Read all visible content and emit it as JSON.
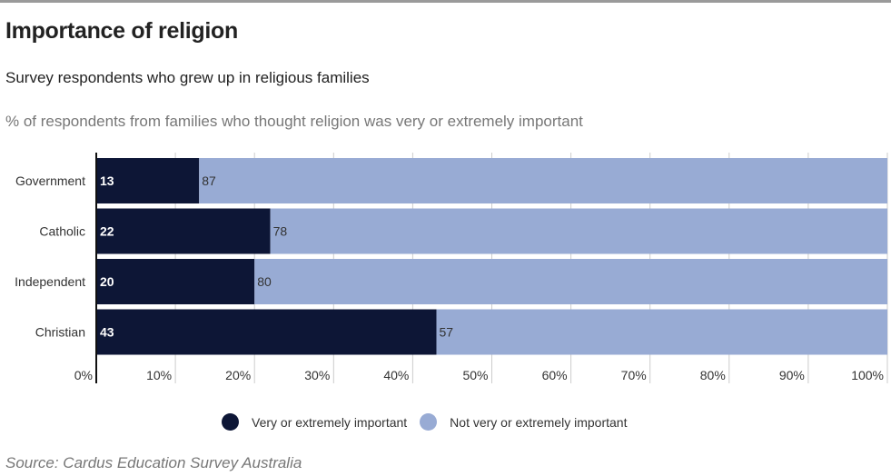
{
  "header": {
    "title": "Importance of religion",
    "subtitle": "Survey respondents who grew up in religious families",
    "measure": "% of respondents from families who thought religion was very or extremely important"
  },
  "legend": {
    "items": [
      {
        "label": "Very or extremely important",
        "color": "#0d1636"
      },
      {
        "label": "Not very or extremely important",
        "color": "#98abd4"
      }
    ]
  },
  "source": "Source: Cardus Education Survey Australia",
  "chart_data": {
    "type": "bar",
    "orientation": "horizontal",
    "stacked": true,
    "categories": [
      "Government",
      "Catholic",
      "Independent",
      "Christian"
    ],
    "series": [
      {
        "name": "Very or extremely important",
        "values": [
          13,
          22,
          20,
          43
        ],
        "color": "#0d1636"
      },
      {
        "name": "Not very or extremely important",
        "values": [
          87,
          78,
          80,
          57
        ],
        "color": "#98abd4"
      }
    ],
    "x_ticks": [
      "0%",
      "10%",
      "20%",
      "30%",
      "40%",
      "50%",
      "60%",
      "70%",
      "80%",
      "90%",
      "100%"
    ],
    "xlim": [
      0,
      100
    ],
    "grid": true,
    "legend_position": "bottom"
  }
}
